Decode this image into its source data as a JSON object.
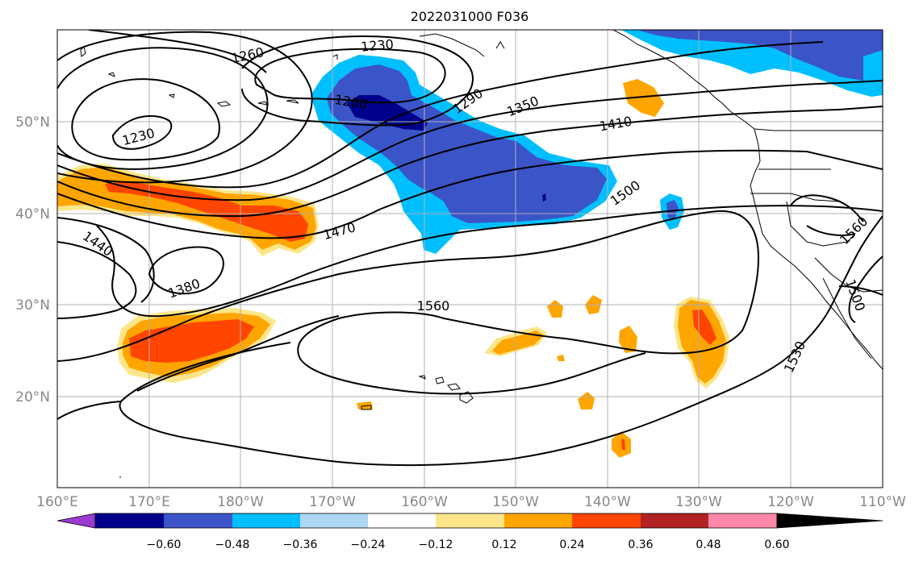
{
  "title": "2022031000 F036",
  "map": {
    "lat_labels": [
      "50°N",
      "40°N",
      "30°N",
      "20°N"
    ],
    "lon_labels": [
      "160°E",
      "170°E",
      "180°W",
      "170°W",
      "160°W",
      "150°W",
      "140°W",
      "130°W",
      "120°W",
      "110°W"
    ],
    "contour_labels": [
      "1260",
      "1230",
      "1230",
      "1200",
      "1290",
      "1350",
      "1410",
      "1470",
      "1500",
      "1440",
      "1380",
      "1560",
      "1560",
      "1530",
      "1500"
    ]
  },
  "colorbar": {
    "tick_labels": [
      "−0.60",
      "−0.48",
      "−0.36",
      "−0.24",
      "−0.12",
      "0.12",
      "0.24",
      "0.36",
      "0.48",
      "0.60"
    ],
    "colors": [
      "#9b3bd0",
      "#00008b",
      "#3b54c8",
      "#00bfff",
      "#add8f5",
      "#ffffff",
      "#fde68a",
      "#ffa500",
      "#ff4500",
      "#b22222",
      "#ff88aa"
    ]
  },
  "colors": {
    "contour": "#000000",
    "grid": "#b0b0b0",
    "coast": "#000000"
  }
}
